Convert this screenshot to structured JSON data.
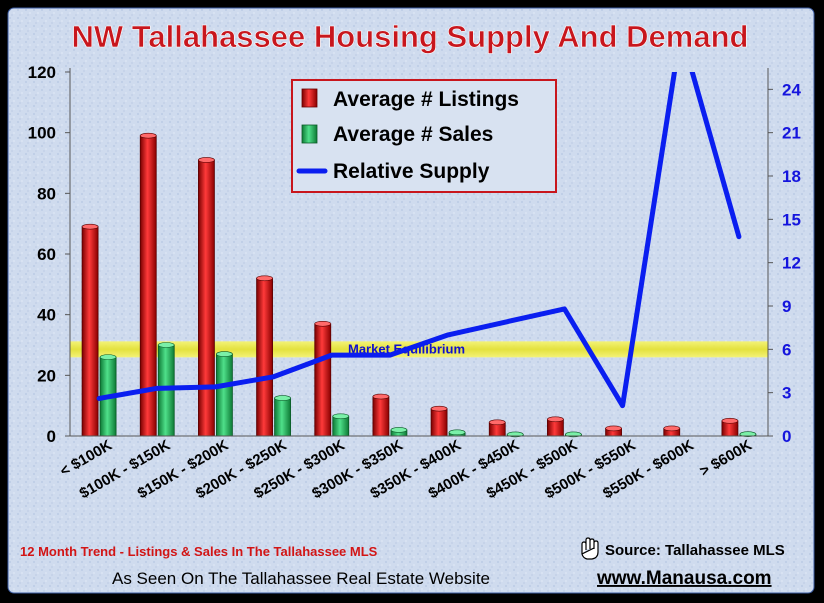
{
  "chart_data": {
    "type": "bar",
    "title": "NW Tallahassee Housing Supply And Demand",
    "categories": [
      "< $100K",
      "$100K - $150K",
      "$150K - $200K",
      "$200K - $250K",
      "$250K - $300K",
      "$300K - $350K",
      "$350K - $400K",
      "$400K - $450K",
      "$450K - $500K",
      "$500K - $550K",
      "$550K - $600K",
      "> $600K"
    ],
    "series": [
      {
        "name": "Average # Listings",
        "type": "bar",
        "axis": "left",
        "color": "#cc1111",
        "values": [
          69,
          99,
          91,
          52,
          37,
          13,
          9,
          4.5,
          5.5,
          2.5,
          2.5,
          5
        ]
      },
      {
        "name": "Average # Sales",
        "type": "bar",
        "axis": "left",
        "color": "#22aa55",
        "values": [
          26,
          30,
          27,
          12.5,
          6.5,
          2,
          1.2,
          0.5,
          0.5,
          0,
          0,
          0.6
        ]
      },
      {
        "name": "Relative Supply",
        "type": "line",
        "axis": "right",
        "color": "#0a1ef0",
        "values": [
          2.6,
          3.3,
          3.4,
          4.1,
          5.6,
          5.6,
          7,
          7.9,
          8.8,
          2.1,
          28,
          13.8
        ]
      }
    ],
    "y_left": {
      "min": 0,
      "max": 120,
      "ticks": [
        "0",
        "20",
        "40",
        "60",
        "80",
        "100",
        "120"
      ]
    },
    "y_right": {
      "min": 0,
      "max": 25.2,
      "ticks": [
        "0",
        "3",
        "6",
        "9",
        "12",
        "15",
        "18",
        "21",
        "24"
      ]
    },
    "annotation": {
      "text": "Market Equilibrium",
      "right_axis_value": 6
    },
    "legend_position": "top-center",
    "grid": false
  },
  "footer": {
    "trend": "12 Month Trend - Listings & Sales In The Tallahassee MLS",
    "source": "Source: Tallahassee MLS",
    "seen": "As Seen On The Tallahassee Real Estate Website",
    "url": "www.Manausa.com"
  },
  "colors": {
    "frame": "#000000",
    "plot_bg": "#cdd9ec",
    "title": "#c8161d",
    "line": "#0a1ef0",
    "band": "#e9e633"
  }
}
